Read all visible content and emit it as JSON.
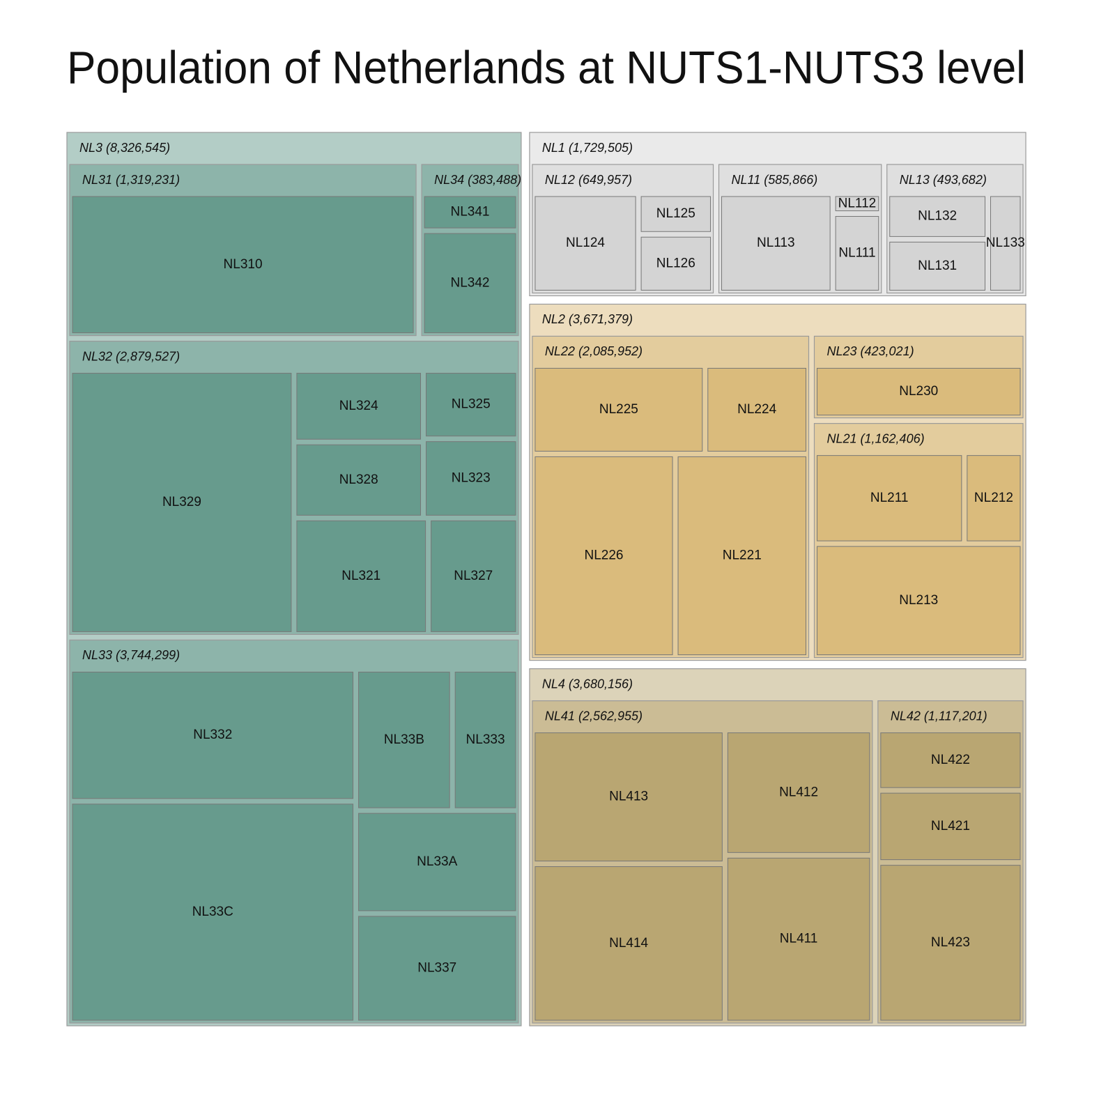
{
  "chart_data": {
    "type": "treemap",
    "title": "Population of Netherlands at NUTS1-NUTS3 level",
    "children": [
      {
        "label": "NL3 (8,326,545)",
        "value": 8326545,
        "color": "#679b8d",
        "children": [
          {
            "label": "NL31 (1,319,231)",
            "value": 1319231,
            "children": [
              {
                "name": "NL310",
                "value": 1319231
              }
            ]
          },
          {
            "label": "NL34 (383,488)",
            "value": 383488,
            "children": [
              {
                "name": "NL341",
                "value": 100000
              },
              {
                "name": "NL342",
                "value": 283488
              }
            ]
          },
          {
            "label": "NL32 (2,879,527)",
            "value": 2879527,
            "children": [
              {
                "name": "NL329",
                "value": 1439527
              },
              {
                "name": "NL324",
                "value": 225000
              },
              {
                "name": "NL325",
                "value": 158000
              },
              {
                "name": "NL328",
                "value": 239000
              },
              {
                "name": "NL323",
                "value": 183000
              },
              {
                "name": "NL321",
                "value": 380000
              },
              {
                "name": "NL327",
                "value": 255000
              }
            ]
          },
          {
            "label": "NL33 (3,744,299)",
            "value": 3744299,
            "children": [
              {
                "name": "NL332",
                "value": 891000
              },
              {
                "name": "NL33B",
                "value": 322000
              },
              {
                "name": "NL333",
                "value": 220000
              },
              {
                "name": "NL33C",
                "value": 1496299
              },
              {
                "name": "NL33A",
                "value": 395000
              },
              {
                "name": "NL337",
                "value": 420000
              }
            ]
          }
        ]
      },
      {
        "label": "NL1 (1,729,505)",
        "value": 1729505,
        "color": "#d4d4d4",
        "children": [
          {
            "label": "NL12 (649,957)",
            "value": 649957,
            "children": [
              {
                "name": "NL124",
                "value": 381000
              },
              {
                "name": "NL125",
                "value": 110000
              },
              {
                "name": "NL126",
                "value": 158957
              }
            ]
          },
          {
            "label": "NL11 (585,866)",
            "value": 585866,
            "children": [
              {
                "name": "NL113",
                "value": 411000
              },
              {
                "name": "NL112",
                "value": 35000
              },
              {
                "name": "NL111",
                "value": 139866
              }
            ]
          },
          {
            "label": "NL13 (493,682)",
            "value": 493682,
            "children": [
              {
                "name": "NL132",
                "value": 168000
              },
              {
                "name": "NL131",
                "value": 198000
              },
              {
                "name": "NL133",
                "value": 127682
              }
            ]
          }
        ]
      },
      {
        "label": "NL2 (3,671,379)",
        "value": 3671379,
        "color": "#dabb7c",
        "children": [
          {
            "label": "NL22 (2,085,952)",
            "value": 2085952,
            "children": [
              {
                "name": "NL225",
                "value": 395000
              },
              {
                "name": "NL224",
                "value": 237000
              },
              {
                "name": "NL226",
                "value": 752000
              },
              {
                "name": "NL221",
                "value": 701952
              }
            ]
          },
          {
            "label": "NL23 (423,021)",
            "value": 423021,
            "children": [
              {
                "name": "NL230",
                "value": 423021
              }
            ]
          },
          {
            "label": "NL21 (1,162,406)",
            "value": 1162406,
            "children": [
              {
                "name": "NL211",
                "value": 371000
              },
              {
                "name": "NL212",
                "value": 145000
              },
              {
                "name": "NL213",
                "value": 646406
              }
            ]
          }
        ]
      },
      {
        "label": "NL4 (3,680,156)",
        "value": 3680156,
        "color": "#b9a672",
        "children": [
          {
            "label": "NL41 (2,562,955)",
            "value": 2562955,
            "children": [
              {
                "name": "NL413",
                "value": 663000
              },
              {
                "name": "NL414",
                "value": 789000
              },
              {
                "name": "NL412",
                "value": 475000
              },
              {
                "name": "NL411",
                "value": 635955
              }
            ]
          },
          {
            "label": "NL42 (1,117,201)",
            "value": 1117201,
            "children": [
              {
                "name": "NL422",
                "value": 230000
              },
              {
                "name": "NL421",
                "value": 275000
              },
              {
                "name": "NL423",
                "value": 612201
              }
            ]
          }
        ]
      }
    ]
  }
}
